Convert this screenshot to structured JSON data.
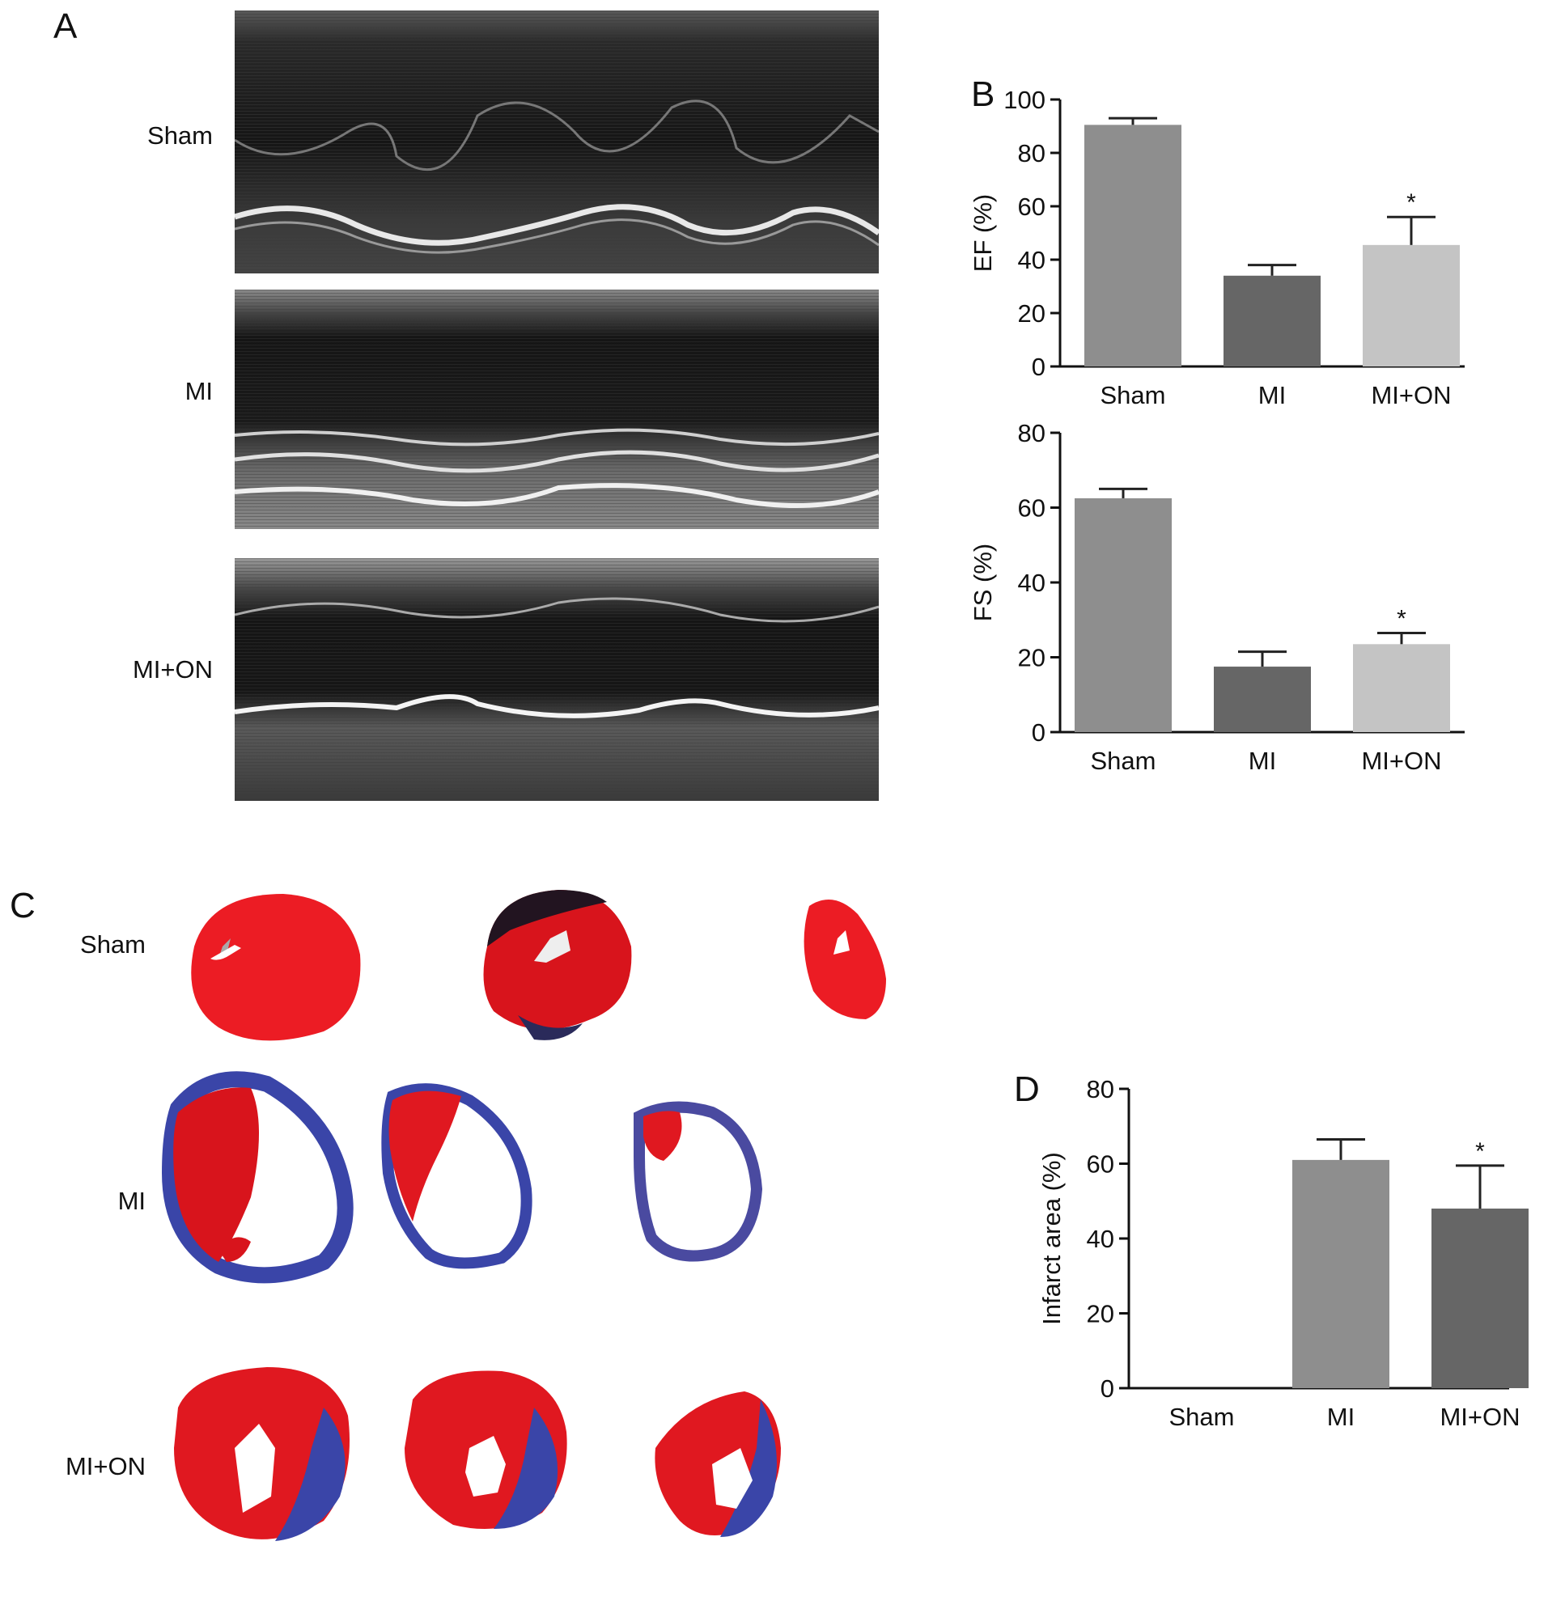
{
  "panelA": {
    "letter": "A",
    "rows": [
      {
        "label": "Sham"
      },
      {
        "label": "MI"
      },
      {
        "label": "MI+ON"
      }
    ]
  },
  "panelB": {
    "letter": "B"
  },
  "panelC": {
    "letter": "C",
    "rows": [
      {
        "label": "Sham"
      },
      {
        "label": "MI"
      },
      {
        "label": "MI+ON"
      }
    ]
  },
  "panelD": {
    "letter": "D"
  },
  "chart_data": [
    {
      "id": "ef",
      "type": "bar",
      "title": "",
      "ylabel": "EF (%)",
      "categories": [
        "Sham",
        "MI",
        "MI+ON"
      ],
      "values": [
        90.5,
        34,
        45.5
      ],
      "errors": [
        2.5,
        4,
        10.5
      ],
      "significance": [
        "",
        "",
        "*"
      ],
      "ylim": [
        0,
        100
      ],
      "yticks": [
        0,
        20,
        40,
        60,
        80,
        100
      ],
      "bar_colors": [
        "#8e8e8e",
        "#666666",
        "#c4c4c4"
      ]
    },
    {
      "id": "fs",
      "type": "bar",
      "title": "",
      "ylabel": "FS (%)",
      "categories": [
        "Sham",
        "MI",
        "MI+ON"
      ],
      "values": [
        62.5,
        17.5,
        23.5
      ],
      "errors": [
        2.5,
        4,
        3
      ],
      "significance": [
        "",
        "",
        "*"
      ],
      "ylim": [
        0,
        80
      ],
      "yticks": [
        0,
        20,
        40,
        60,
        80
      ],
      "bar_colors": [
        "#8e8e8e",
        "#666666",
        "#c4c4c4"
      ]
    },
    {
      "id": "infarct",
      "type": "bar",
      "title": "",
      "ylabel": "Infarct area (%)",
      "categories": [
        "Sham",
        "MI",
        "MI+ON"
      ],
      "values": [
        0,
        61,
        48
      ],
      "errors": [
        0,
        5.5,
        11.5
      ],
      "significance": [
        "",
        "",
        "*"
      ],
      "ylim": [
        0,
        80
      ],
      "yticks": [
        0,
        20,
        40,
        60,
        80
      ],
      "bar_colors": [
        "#8e8e8e",
        "#8e8e8e",
        "#666666"
      ]
    }
  ]
}
